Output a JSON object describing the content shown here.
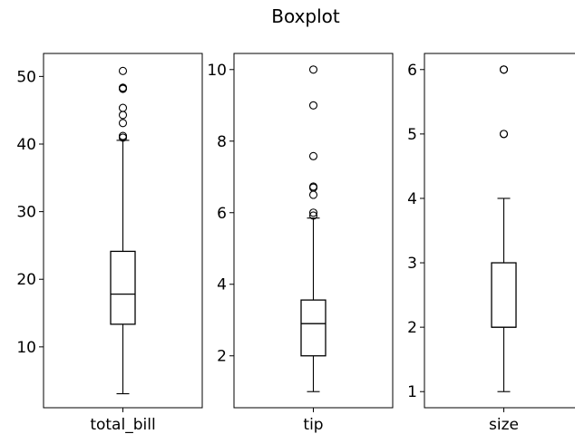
{
  "chart_data": {
    "type": "box",
    "title": "Boxplot",
    "panels": [
      {
        "category": "total_bill",
        "ylim": [
          1.0,
          53.4
        ],
        "yticks": [
          10,
          20,
          30,
          40,
          50
        ],
        "stats": {
          "whislo": 3.07,
          "q1": 13.35,
          "med": 17.8,
          "q3": 24.13,
          "whishi": 40.55
        },
        "fliers": [
          40.95,
          41.19,
          43.11,
          44.3,
          45.35,
          48.17,
          48.27,
          48.33,
          50.81
        ]
      },
      {
        "category": "tip",
        "ylim": [
          0.55,
          10.45
        ],
        "yticks": [
          2,
          4,
          6,
          8,
          10
        ],
        "stats": {
          "whislo": 1.0,
          "q1": 2.0,
          "med": 2.9,
          "q3": 3.56,
          "whishi": 5.85
        },
        "fliers": [
          5.92,
          6.0,
          6.5,
          6.7,
          6.73,
          7.58,
          9.0,
          10.0
        ]
      },
      {
        "category": "size",
        "ylim": [
          0.75,
          6.25
        ],
        "yticks": [
          1,
          2,
          3,
          4,
          5,
          6
        ],
        "stats": {
          "whislo": 1,
          "q1": 2,
          "med": 2,
          "q3": 3,
          "whishi": 4
        },
        "fliers": [
          5,
          5,
          6,
          6
        ]
      }
    ]
  }
}
